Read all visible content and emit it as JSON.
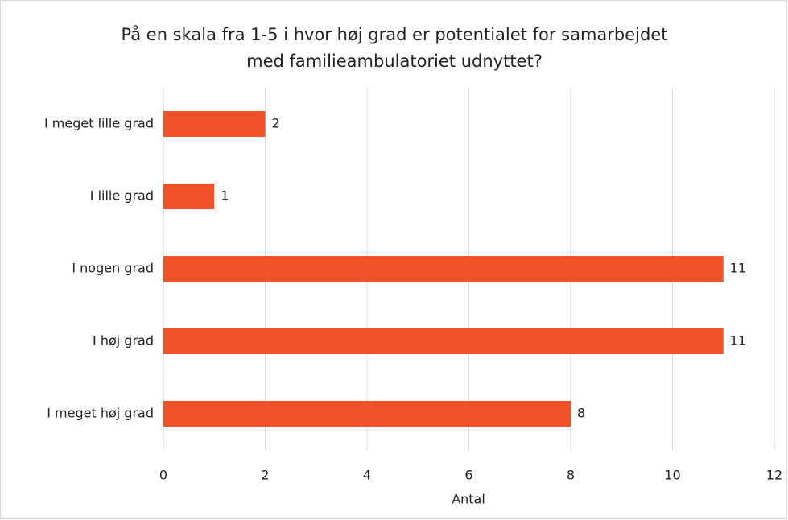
{
  "chart_data": {
    "type": "bar",
    "orientation": "horizontal",
    "title": [
      "På en skala fra 1-5 i hvor høj grad er potentialet for samarbejdet",
      "med familieambulatoriet udnyttet?"
    ],
    "x_label": "Antal",
    "categories": [
      "I meget lille grad",
      "I lille grad",
      "I nogen grad",
      "I høj grad",
      "I meget høj grad"
    ],
    "values": [
      2,
      1,
      11,
      11,
      8
    ],
    "color": "#f0502a",
    "xlim": [
      0,
      12
    ],
    "xticks": [
      0,
      2,
      4,
      6,
      8,
      10,
      12
    ],
    "grid": true
  }
}
